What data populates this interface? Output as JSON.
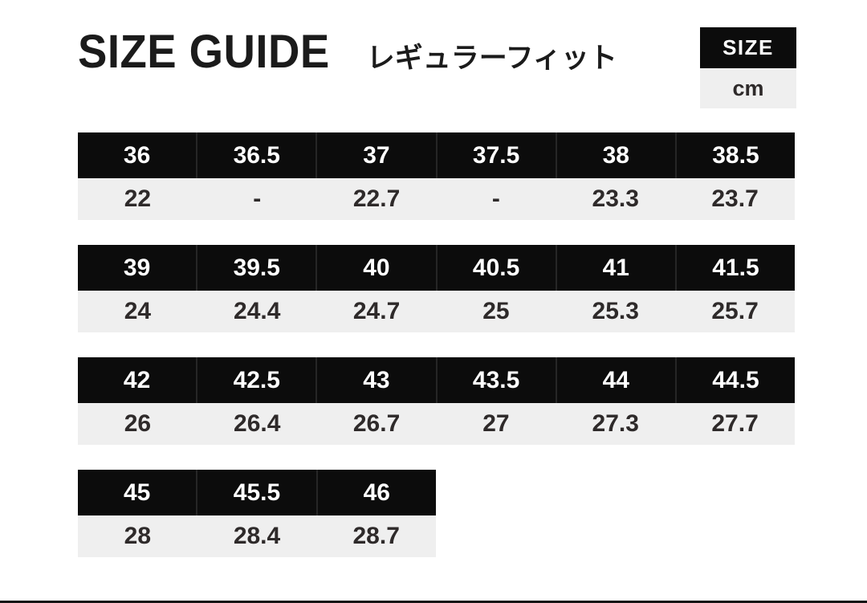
{
  "header": {
    "title": "SIZE GUIDE",
    "subtitle": "レギュラーフィット"
  },
  "legend": {
    "size_label": "SIZE",
    "unit_label": "cm"
  },
  "colors": {
    "page_bg": "#ffffff",
    "header_bg": "#0c0c0c",
    "header_text": "#ffffff",
    "header_divider": "#262626",
    "row_bg": "#efefef",
    "row_text": "#2e2a2a",
    "title_text": "#1b1b1b",
    "bottom_bar": "#141414"
  },
  "chart_data": {
    "type": "table",
    "title": "SIZE GUIDE",
    "subtitle": "レギュラーフィット",
    "row_labels": [
      "SIZE",
      "cm"
    ],
    "unit": "cm",
    "tables": [
      {
        "sizes": [
          "36",
          "36.5",
          "37",
          "37.5",
          "38",
          "38.5"
        ],
        "cm": [
          "22",
          "-",
          "22.7",
          "-",
          "23.3",
          "23.7"
        ]
      },
      {
        "sizes": [
          "39",
          "39.5",
          "40",
          "40.5",
          "41",
          "41.5"
        ],
        "cm": [
          "24",
          "24.4",
          "24.7",
          "25",
          "25.3",
          "25.7"
        ]
      },
      {
        "sizes": [
          "42",
          "42.5",
          "43",
          "43.5",
          "44",
          "44.5"
        ],
        "cm": [
          "26",
          "26.4",
          "26.7",
          "27",
          "27.3",
          "27.7"
        ]
      },
      {
        "sizes": [
          "45",
          "45.5",
          "46"
        ],
        "cm": [
          "28",
          "28.4",
          "28.7"
        ]
      }
    ]
  }
}
